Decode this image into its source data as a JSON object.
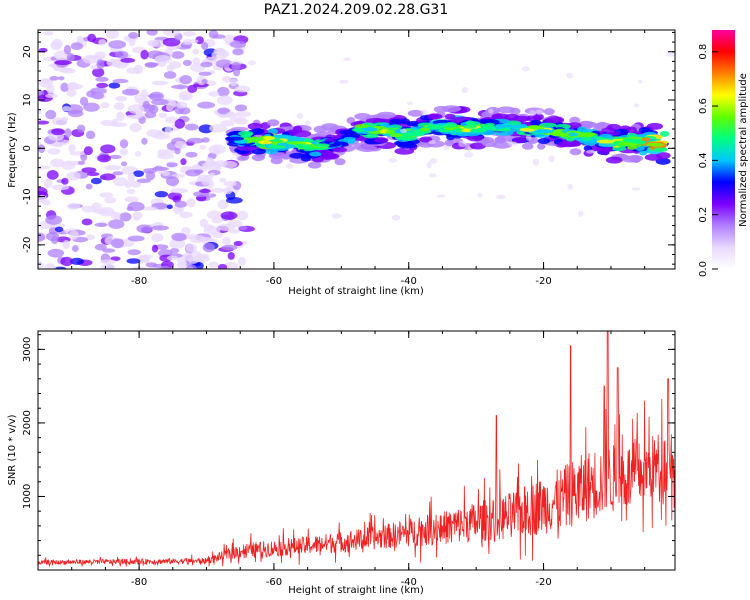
{
  "title": "PAZ1.2024.209.02.28.G31",
  "chart_data": [
    {
      "type": "heatmap",
      "xlabel": "Height of straight line (km)",
      "ylabel": "Frequency (Hz)",
      "xlim": [
        -95,
        -0.5
      ],
      "ylim": [
        -25,
        24.5
      ],
      "x_ticks": [
        "-80",
        "-60",
        "-40",
        "-20"
      ],
      "y_ticks": [
        "-20",
        "-10",
        "0",
        "10",
        "20"
      ],
      "colorbar": {
        "label": "Normalized spectral amplitude",
        "range": [
          0,
          0.88
        ],
        "ticks": [
          "0.0",
          "0.2",
          "0.4",
          "0.6",
          "0.8"
        ],
        "colormap": [
          "#ffffff",
          "#e8d8ff",
          "#b080ff",
          "#7a00ff",
          "#0000ff",
          "#00c8ff",
          "#00ff80",
          "#60ff00",
          "#ffff00",
          "#ff8000",
          "#ff0000",
          "#ff00a0"
        ]
      },
      "ridge": [
        {
          "x": -66,
          "freq": 2.0,
          "amp": 0.4
        },
        {
          "x": -60,
          "freq": 1.5,
          "amp": 0.55
        },
        {
          "x": -54,
          "freq": 0.0,
          "amp": 0.5
        },
        {
          "x": -50,
          "freq": 1.0,
          "amp": 0.3
        },
        {
          "x": -47,
          "freq": 4.0,
          "amp": 0.45
        },
        {
          "x": -40,
          "freq": 3.0,
          "amp": 0.5
        },
        {
          "x": -36,
          "freq": 4.5,
          "amp": 0.4
        },
        {
          "x": -32,
          "freq": 4.0,
          "amp": 0.55
        },
        {
          "x": -27,
          "freq": 4.5,
          "amp": 0.35
        },
        {
          "x": -22,
          "freq": 4.0,
          "amp": 0.5
        },
        {
          "x": -15,
          "freq": 3.0,
          "amp": 0.45
        },
        {
          "x": -10,
          "freq": 1.0,
          "amp": 0.5
        },
        {
          "x": -6,
          "freq": 1.5,
          "amp": 0.55
        },
        {
          "x": -2,
          "freq": 0.8,
          "amp": 0.75
        }
      ],
      "noise_region_x": [
        -95,
        -64
      ]
    },
    {
      "type": "line",
      "xlabel": "Height of straight line (km)",
      "ylabel": "SNR (10 * v/v)",
      "xlim": [
        -95,
        -0.5
      ],
      "ylim": [
        0,
        3250
      ],
      "x_ticks": [
        "-80",
        "-60",
        "-40",
        "-20"
      ],
      "y_ticks": [
        "1000",
        "2000",
        "3000"
      ],
      "color": "#ee2222",
      "envelope": [
        {
          "x": -95,
          "mean": 100,
          "spread": 60
        },
        {
          "x": -70,
          "mean": 120,
          "spread": 80
        },
        {
          "x": -65,
          "mean": 250,
          "spread": 200
        },
        {
          "x": -55,
          "mean": 320,
          "spread": 250
        },
        {
          "x": -45,
          "mean": 420,
          "spread": 320
        },
        {
          "x": -35,
          "mean": 550,
          "spread": 450
        },
        {
          "x": -25,
          "mean": 700,
          "spread": 650
        },
        {
          "x": -18,
          "mean": 900,
          "spread": 850
        },
        {
          "x": -12,
          "mean": 1150,
          "spread": 1000
        },
        {
          "x": -6,
          "mean": 1250,
          "spread": 900
        },
        {
          "x": -0.5,
          "mean": 1500,
          "spread": 900
        }
      ],
      "peaks": [
        {
          "x": -16,
          "y": 3050
        },
        {
          "x": -10.5,
          "y": 3250
        },
        {
          "x": -9,
          "y": 2750
        },
        {
          "x": -1.5,
          "y": 2600
        },
        {
          "x": -27,
          "y": 2100
        },
        {
          "x": -11,
          "y": 2500
        }
      ]
    }
  ]
}
